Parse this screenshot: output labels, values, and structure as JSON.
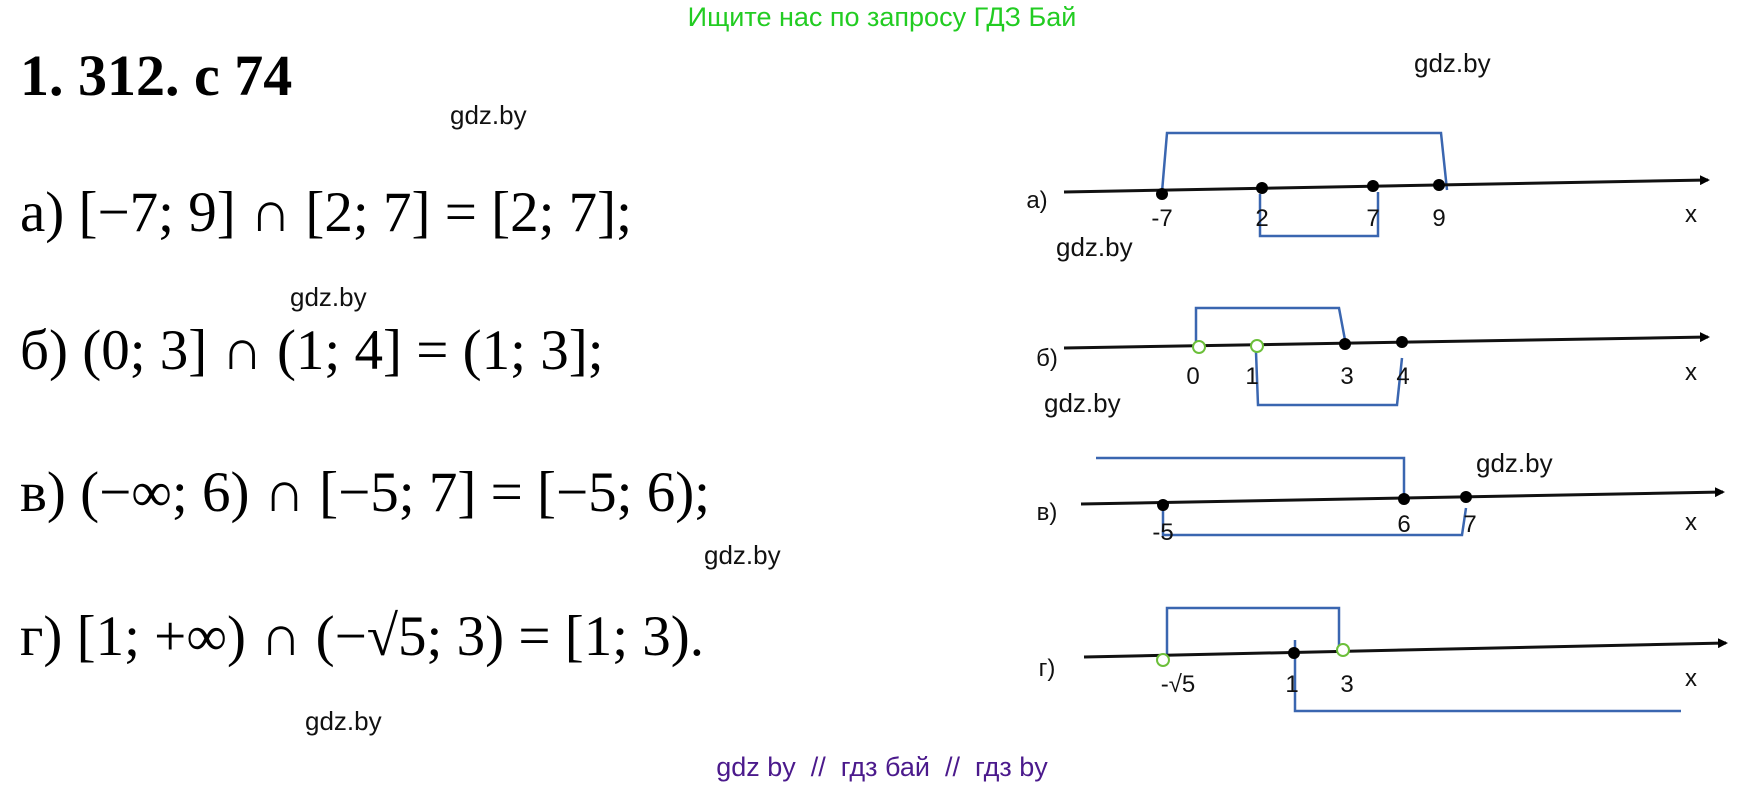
{
  "banner": "Ищите нас по запросу ГДЗ Бай",
  "title": "1. 312. с 74",
  "solutions": [
    {
      "text": "а) [−7; 9] ∩ [2; 7] = [2; 7];"
    },
    {
      "text": "б) (0; 3] ∩ (1; 4] = (1; 3];"
    },
    {
      "text": "в) (−∞; 6) ∩ [−5; 7] = [−5; 6);"
    },
    {
      "text": "г) [1; +∞) ∩ (−√5; 3) = [1; 3)."
    }
  ],
  "watermark": "gdz.by",
  "footer": "gdz by  //  гдз бай  //  гдз by",
  "diagrams": [
    {
      "label": "а)",
      "axis": "x",
      "points": [
        "-7",
        "2",
        "7",
        "9"
      ]
    },
    {
      "label": "б)",
      "axis": "x",
      "points": [
        "0",
        "1",
        "3",
        "4"
      ]
    },
    {
      "label": "в)",
      "axis": "x",
      "points": [
        "-5",
        "6",
        "7"
      ]
    },
    {
      "label": "г)",
      "axis": "x",
      "points": [
        "-√5",
        "1",
        "3"
      ]
    }
  ],
  "colors": {
    "banner": "#22cc22",
    "bracket": "#3a66b0",
    "open_point": "#6cbf3a",
    "footer": "#4b1a8c"
  }
}
